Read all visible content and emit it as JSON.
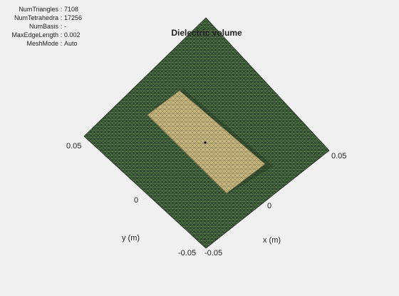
{
  "stats": [
    {
      "name": "NumTriangles",
      "value": "7108"
    },
    {
      "name": "NumTetrahedra",
      "value": "17256"
    },
    {
      "name": "NumBasis",
      "value": "-"
    },
    {
      "name": "MaxEdgeLength",
      "value": "0.002"
    },
    {
      "name": "MeshMode",
      "value": "Auto"
    }
  ],
  "stat_separator": ":",
  "title": "Dielectric volume",
  "axes": {
    "x_label": "x (m)",
    "y_label": "y (m)",
    "x_ticks": [
      "-0.05",
      "0",
      "0.05"
    ],
    "y_ticks": [
      "-0.05",
      "0",
      "0.05"
    ]
  },
  "colors": {
    "background": "#f0f0f0",
    "substrate": "#2f4a2c",
    "mesh_line": "#8fb87e",
    "patch": "#bfb07a",
    "patch_mesh": "#5c5535"
  }
}
